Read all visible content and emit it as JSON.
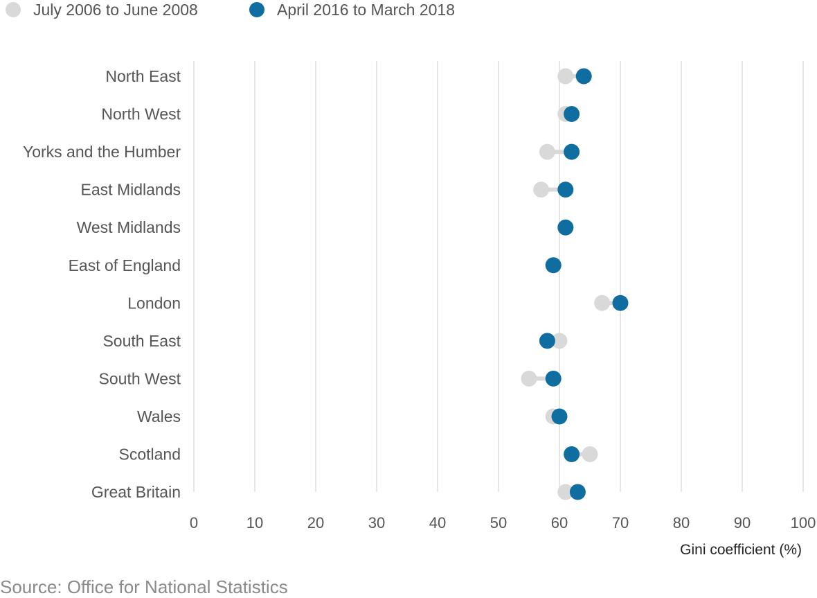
{
  "chart_data": {
    "type": "dot",
    "title": "",
    "xlabel": "Gini coefficient (%)",
    "ylabel": "",
    "xlim": [
      0,
      100
    ],
    "xticks": [
      "0",
      "10",
      "20",
      "30",
      "40",
      "50",
      "60",
      "70",
      "80",
      "90",
      "100"
    ],
    "grid": "vertical",
    "legend_position": "top-left",
    "categories": [
      "North East",
      "North West",
      "Yorks and the Humber",
      "East Midlands",
      "West Midlands",
      "East of England",
      "London",
      "South East",
      "South West",
      "Wales",
      "Scotland",
      "Great Britain"
    ],
    "series": [
      {
        "name": "July 2006 to June 2008",
        "color": "#d9d9d9",
        "values": [
          61,
          61,
          58,
          57,
          61,
          59,
          67,
          60,
          55,
          59,
          65,
          61
        ]
      },
      {
        "name": "April 2016 to March 2018",
        "color": "#0f6e9f",
        "values": [
          64,
          62,
          62,
          61,
          61,
          59,
          70,
          58,
          59,
          60,
          62,
          63
        ]
      }
    ],
    "connector_color": "#d9d9d9",
    "gridline_color": "#e6e6e6"
  },
  "source": "Source: Office for National Statistics"
}
